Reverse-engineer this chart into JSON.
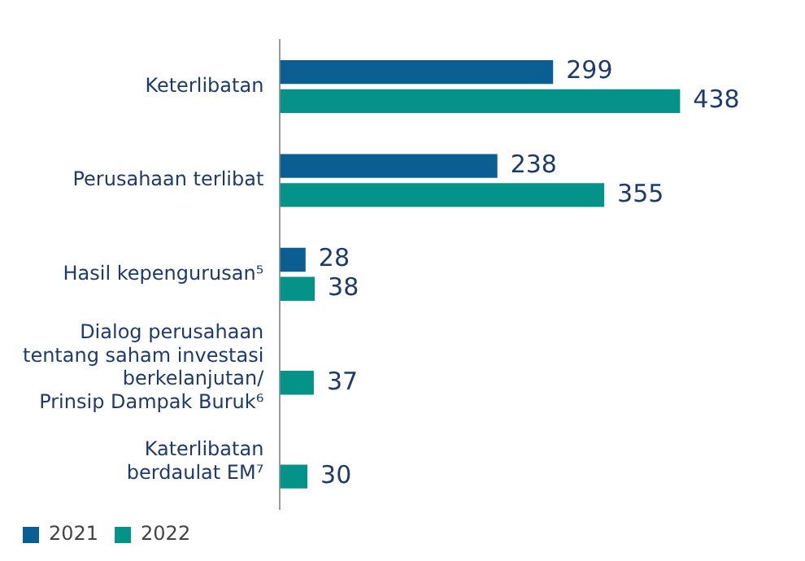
{
  "chart_data": {
    "type": "bar",
    "orientation": "horizontal",
    "categories": [
      "Keterlibatan",
      "Perusahaan terlibat",
      "Hasil kepengurusan⁵",
      "Dialog perusahaan\ntentang saham investasi\nberkelanjutan/\nPrinsip Dampak Buruk⁶",
      "Katerlibatan\nberdaulat EM⁷"
    ],
    "series": [
      {
        "name": "2021",
        "color": "#0b5e91",
        "values": [
          299,
          238,
          28,
          null,
          null
        ]
      },
      {
        "name": "2022",
        "color": "#049289",
        "values": [
          438,
          355,
          38,
          37,
          30
        ]
      }
    ],
    "data_labels": true,
    "legend": "bottom left"
  }
}
